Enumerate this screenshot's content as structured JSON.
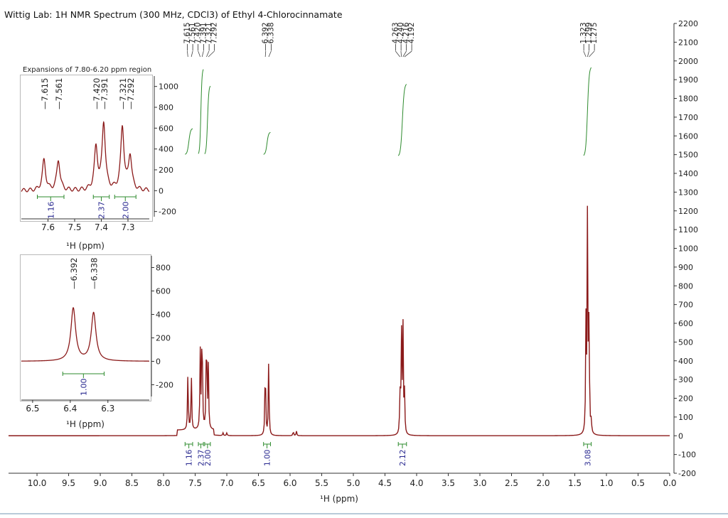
{
  "title": "Wittig Lab: 1H NMR Spectrum (300 MHz, CDCl3) of Ethyl 4-Chlorocinnamate",
  "colors": {
    "spectrum": "#8b1a1a",
    "integral": "#2e8b2e",
    "integral_label": "#27278f",
    "axis": "#333333"
  },
  "chart_data": [
    {
      "type": "line",
      "name": "main-spectrum",
      "xlabel": "¹H (ppm)",
      "x_reversed": true,
      "xlim": [
        10.45,
        0.0
      ],
      "ylim": [
        -200,
        2200
      ],
      "y_axis_side": "right",
      "xticks": [
        10.0,
        9.5,
        9.0,
        8.5,
        8.0,
        7.5,
        7.0,
        6.5,
        6.0,
        5.5,
        5.0,
        4.5,
        4.0,
        3.5,
        3.0,
        2.5,
        2.0,
        1.5,
        1.0,
        0.5,
        0.0
      ],
      "xtick_labels": [
        "10.0",
        "9.5",
        "9.0",
        "8.5",
        "8.0",
        "7.5",
        "7.0",
        "6.5",
        "6.0",
        "5.5",
        "5.0",
        "4.5",
        "4.0",
        "3.5",
        "3.0",
        "2.5",
        "2.0",
        "1.5",
        "1.0",
        "0.5",
        "0.0"
      ],
      "yticks": [
        -200,
        -100,
        0,
        100,
        200,
        300,
        400,
        500,
        600,
        700,
        800,
        900,
        1000,
        1100,
        1200,
        1300,
        1400,
        1500,
        1600,
        1700,
        1800,
        1900,
        2000,
        2100,
        2200
      ],
      "ytick_labels": [
        "-200",
        "-100",
        "0",
        "100",
        "200",
        "300",
        "400",
        "500",
        "600",
        "700",
        "800",
        "900",
        "1000",
        "1100",
        "1200",
        "1300",
        "1400",
        "1500",
        "1600",
        "1700",
        "1800",
        "1900",
        "2000",
        "2100",
        "2200"
      ],
      "peaks": [
        {
          "ppm": 7.615,
          "height": 300
        },
        {
          "ppm": 7.561,
          "height": 300
        },
        {
          "ppm": 7.42,
          "height": 410
        },
        {
          "ppm": 7.391,
          "height": 640
        },
        {
          "ppm": 7.321,
          "height": 600
        },
        {
          "ppm": 7.292,
          "height": 330
        },
        {
          "ppm": 6.392,
          "height": 430
        },
        {
          "ppm": 6.338,
          "height": 400
        },
        {
          "ppm": 4.263,
          "height": 210
        },
        {
          "ppm": 4.24,
          "height": 565
        },
        {
          "ppm": 4.216,
          "height": 580
        },
        {
          "ppm": 4.192,
          "height": 215
        },
        {
          "ppm": 1.323,
          "height": 590
        },
        {
          "ppm": 1.299,
          "height": 1190
        },
        {
          "ppm": 1.275,
          "height": 580
        },
        {
          "ppm": 7.06,
          "height": 15
        },
        {
          "ppm": 7.0,
          "height": 15
        },
        {
          "ppm": 5.95,
          "height": 25
        },
        {
          "ppm": 5.9,
          "height": 25
        },
        {
          "ppm": 1.24,
          "height": 65
        },
        {
          "ppm": 1.27,
          "height": 40
        }
      ],
      "peak_labels": [
        {
          "ppm": 7.615,
          "text": "7.615"
        },
        {
          "ppm": 7.561,
          "text": "7.561"
        },
        {
          "ppm": 7.42,
          "text": "7.420"
        },
        {
          "ppm": 7.391,
          "text": "7.391"
        },
        {
          "ppm": 7.321,
          "text": "7.321"
        },
        {
          "ppm": 7.292,
          "text": "7.292"
        },
        {
          "ppm": 6.392,
          "text": "6.392"
        },
        {
          "ppm": 6.338,
          "text": "6.338"
        },
        {
          "ppm": 4.263,
          "text": "4.263"
        },
        {
          "ppm": 4.24,
          "text": "4.240"
        },
        {
          "ppm": 4.216,
          "text": "4.216"
        },
        {
          "ppm": 4.192,
          "text": "4.192"
        },
        {
          "ppm": 1.323,
          "text": "1.323"
        },
        {
          "ppm": 1.299,
          "text": "1.299"
        },
        {
          "ppm": 1.275,
          "text": "1.275"
        }
      ],
      "integrals": [
        {
          "from": 7.66,
          "to": 7.54,
          "value": "1.16",
          "y_start": 1500,
          "y_end": 1640
        },
        {
          "from": 7.45,
          "to": 7.37,
          "value": "2.37",
          "y_start": 1500,
          "y_end": 1960
        },
        {
          "from": 7.35,
          "to": 7.26,
          "value": "2.00",
          "y_start": 1500,
          "y_end": 1870
        },
        {
          "from": 6.42,
          "to": 6.31,
          "value": "1.00",
          "y_start": 1500,
          "y_end": 1620
        },
        {
          "from": 4.29,
          "to": 4.16,
          "value": "2.12",
          "y_start": 1490,
          "y_end": 1880
        },
        {
          "from": 1.36,
          "to": 1.24,
          "value": "3.08",
          "y_start": 1490,
          "y_end": 1970
        }
      ]
    },
    {
      "type": "line",
      "name": "expansion-aromatic",
      "title": "Expansions of 7.80-6.20 ppm region",
      "xlabel": "¹H (ppm)",
      "x_reversed": true,
      "xlim": [
        7.7,
        7.22
      ],
      "ylim": [
        -250,
        1100
      ],
      "y_axis_side": "right",
      "xticks": [
        7.6,
        7.5,
        7.4,
        7.3
      ],
      "xtick_labels": [
        "7.6",
        "7.5",
        "7.4",
        "7.3"
      ],
      "yticks": [
        -200,
        0,
        200,
        400,
        600,
        800,
        1000
      ],
      "ytick_labels": [
        "-200",
        "0",
        "200",
        "400",
        "600",
        "800",
        "1000"
      ],
      "peaks": [
        {
          "ppm": 7.615,
          "height": 290
        },
        {
          "ppm": 7.561,
          "height": 290
        },
        {
          "ppm": 7.42,
          "height": 400
        },
        {
          "ppm": 7.391,
          "height": 640
        },
        {
          "ppm": 7.321,
          "height": 600
        },
        {
          "ppm": 7.292,
          "height": 330
        }
      ],
      "peak_labels": [
        {
          "ppm": 7.615,
          "text": "7.615"
        },
        {
          "ppm": 7.561,
          "text": "7.561"
        },
        {
          "ppm": 7.42,
          "text": "7.420"
        },
        {
          "ppm": 7.391,
          "text": "7.391"
        },
        {
          "ppm": 7.321,
          "text": "7.321"
        },
        {
          "ppm": 7.292,
          "text": "7.292"
        }
      ],
      "integrals": [
        {
          "from": 7.64,
          "to": 7.54,
          "value": "1.16"
        },
        {
          "from": 7.43,
          "to": 7.37,
          "value": "2.37"
        },
        {
          "from": 7.35,
          "to": 7.27,
          "value": "2.00"
        }
      ]
    },
    {
      "type": "line",
      "name": "expansion-vinyl",
      "xlabel": "¹H (ppm)",
      "x_reversed": true,
      "xlim": [
        6.53,
        6.19
      ],
      "ylim": [
        -300,
        900
      ],
      "y_axis_side": "right",
      "xticks": [
        6.5,
        6.4,
        6.3
      ],
      "xtick_labels": [
        "6.5",
        "6.4",
        "6.3"
      ],
      "yticks": [
        -200,
        0,
        200,
        400,
        600,
        800
      ],
      "ytick_labels": [
        "-200",
        "0",
        "200",
        "400",
        "600",
        "800"
      ],
      "peaks": [
        {
          "ppm": 6.392,
          "height": 450
        },
        {
          "ppm": 6.338,
          "height": 410
        }
      ],
      "peak_labels": [
        {
          "ppm": 6.392,
          "text": "6.392"
        },
        {
          "ppm": 6.338,
          "text": "6.338"
        }
      ],
      "integrals": [
        {
          "from": 6.42,
          "to": 6.31,
          "value": "1.00"
        }
      ]
    }
  ]
}
